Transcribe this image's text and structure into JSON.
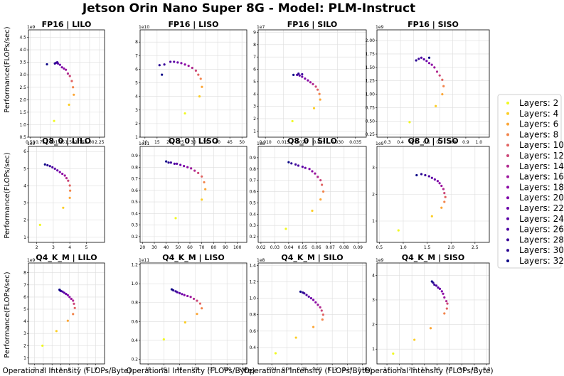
{
  "figure": {
    "title": "Jetson Orin Nano Super 8G - Model: PLM-Instruct",
    "ylabel": "Performance(FLOPs/sec)",
    "xlabel": "Operational Intensity (FLOPs/Byte)"
  },
  "legend": {
    "entries": [
      "Layers: 2",
      "Layers: 4",
      "Layers: 6",
      "Layers: 8",
      "Layers: 10",
      "Layers: 12",
      "Layers: 14",
      "Layers: 16",
      "Layers: 18",
      "Layers: 20",
      "Layers: 22",
      "Layers: 24",
      "Layers: 26",
      "Layers: 28",
      "Layers: 30",
      "Layers: 32"
    ],
    "colors": [
      "#f0f921",
      "#fcce25",
      "#fca636",
      "#f2844b",
      "#e16462",
      "#cc4778",
      "#b12a90",
      "#9c179e",
      "#8b0aa5",
      "#7e03a8",
      "#6a00a8",
      "#5b01a5",
      "#4c02a1",
      "#3a049a",
      "#2a0593",
      "#0d0887"
    ]
  },
  "chart_data": [
    {
      "type": "scatter",
      "title": "FP16 | LILO",
      "xlim": [
        0.45,
        2.38
      ],
      "ylim": [
        0.5,
        4.8
      ],
      "xticks": [
        "0.50",
        "0.75",
        "1.00",
        "1.25",
        "1.50",
        "1.75",
        "2.00",
        "2.25"
      ],
      "xtick_values": [
        0.5,
        0.75,
        1.0,
        1.25,
        1.5,
        1.75,
        2.0,
        2.25
      ],
      "yticks": [
        "0.5",
        "1.0",
        "1.5",
        "2.0",
        "2.5",
        "3.0",
        "3.5",
        "4.0",
        "4.5"
      ],
      "ytick_values": [
        0.5,
        1.0,
        1.5,
        2.0,
        2.5,
        3.0,
        3.5,
        4.0,
        4.5
      ],
      "exponent": "1e9",
      "x": [
        1.1,
        1.48,
        1.6,
        1.58,
        1.55,
        1.5,
        1.45,
        1.4,
        1.35,
        1.3,
        1.25,
        1.2,
        1.15,
        1.18,
        1.12,
        0.92
      ],
      "y": [
        1.15,
        1.8,
        2.2,
        2.5,
        2.75,
        2.95,
        3.05,
        3.2,
        3.25,
        3.3,
        3.4,
        3.45,
        3.48,
        3.5,
        3.45,
        3.42
      ]
    },
    {
      "type": "scatter",
      "title": "FP16 | LISO",
      "xlim": [
        8,
        52
      ],
      "ylim": [
        1.0,
        8.9
      ],
      "xticks": [
        "10",
        "15",
        "20",
        "25",
        "30",
        "35",
        "40",
        "45",
        "50"
      ],
      "xtick_values": [
        10,
        15,
        20,
        25,
        30,
        35,
        40,
        45,
        50
      ],
      "yticks": [
        "1",
        "2",
        "3",
        "4",
        "5",
        "6",
        "7",
        "8"
      ],
      "ytick_values": [
        1,
        2,
        3,
        4,
        5,
        6,
        7,
        8
      ],
      "exponent": "1e10",
      "x": [
        26.5,
        32.5,
        33.5,
        33,
        32,
        31,
        29.5,
        28,
        26.5,
        25,
        23.5,
        22,
        20.5,
        18,
        16,
        17
      ],
      "y": [
        2.75,
        4.0,
        4.7,
        5.3,
        5.6,
        5.9,
        6.1,
        6.25,
        6.35,
        6.45,
        6.5,
        6.55,
        6.55,
        6.35,
        6.3,
        5.6
      ]
    },
    {
      "type": "scatter",
      "title": "FP16 | SILO",
      "xlim": [
        0.008,
        0.038
      ],
      "ylim": [
        0.5,
        9.2
      ],
      "xticks": [
        "0.010",
        "0.015",
        "0.020",
        "0.025",
        "0.030",
        "0.035"
      ],
      "xtick_values": [
        0.01,
        0.015,
        0.02,
        0.025,
        0.03,
        0.035
      ],
      "yticks": [
        "1",
        "2",
        "3",
        "4",
        "5",
        "6",
        "7",
        "8",
        "9"
      ],
      "ytick_values": [
        1,
        2,
        3,
        4,
        5,
        6,
        7,
        8,
        9
      ],
      "exponent": "1e7",
      "x": [
        0.0175,
        0.0235,
        0.0252,
        0.025,
        0.0245,
        0.024,
        0.0232,
        0.0225,
        0.0218,
        0.021,
        0.0202,
        0.0195,
        0.0188,
        0.0202,
        0.0192,
        0.0178
      ],
      "y": [
        1.8,
        2.85,
        3.55,
        4.0,
        4.35,
        4.6,
        4.8,
        4.95,
        5.1,
        5.25,
        5.4,
        5.5,
        5.55,
        5.6,
        5.65,
        5.55
      ]
    },
    {
      "type": "scatter",
      "title": "FP16 | SISO",
      "xlim": [
        0.22,
        1.08
      ],
      "ylim": [
        0.2,
        2.2
      ],
      "xticks": [
        "0.3",
        "0.4",
        "0.5",
        "0.6",
        "0.7",
        "0.8",
        "0.9",
        "1.0"
      ],
      "xtick_values": [
        0.3,
        0.4,
        0.5,
        0.6,
        0.7,
        0.8,
        0.9,
        1.0
      ],
      "yticks": [
        "0.25",
        "0.50",
        "0.75",
        "1.00",
        "1.25",
        "1.50",
        "1.75",
        "2.00"
      ],
      "ytick_values": [
        0.25,
        0.5,
        0.75,
        1.0,
        1.25,
        1.5,
        1.75,
        2.0
      ],
      "exponent": "1e9",
      "x": [
        0.47,
        0.67,
        0.72,
        0.73,
        0.72,
        0.7,
        0.68,
        0.66,
        0.64,
        0.62,
        0.6,
        0.58,
        0.56,
        0.54,
        0.52,
        0.62
      ],
      "y": [
        0.48,
        0.78,
        1.0,
        1.15,
        1.27,
        1.35,
        1.42,
        1.5,
        1.55,
        1.58,
        1.62,
        1.65,
        1.68,
        1.66,
        1.63,
        1.68
      ]
    },
    {
      "type": "scatter",
      "title": "Q8_0 | LILO",
      "xlim": [
        1.5,
        6.1
      ],
      "ylim": [
        0.7,
        6.3
      ],
      "xticks": [
        "2",
        "3",
        "4",
        "5"
      ],
      "xtick_values": [
        2,
        3,
        4,
        5
      ],
      "yticks": [
        "1",
        "2",
        "3",
        "4",
        "5",
        "6"
      ],
      "ytick_values": [
        1,
        2,
        3,
        4,
        5,
        6
      ],
      "exponent": "1e9",
      "x": [
        2.2,
        3.6,
        4.0,
        4.02,
        4.0,
        3.9,
        3.8,
        3.7,
        3.55,
        3.4,
        3.25,
        3.1,
        2.95,
        2.8,
        2.65,
        2.5
      ],
      "y": [
        1.72,
        2.72,
        3.3,
        3.72,
        4.02,
        4.3,
        4.45,
        4.6,
        4.7,
        4.8,
        4.9,
        5.0,
        5.08,
        5.15,
        5.2,
        5.25
      ]
    },
    {
      "type": "scatter",
      "title": "Q8_0 | LISO",
      "xlim": [
        18,
        108
      ],
      "ylim": [
        0.15,
        0.98
      ],
      "xticks": [
        "20",
        "30",
        "40",
        "50",
        "60",
        "70",
        "80",
        "90",
        "100"
      ],
      "xtick_values": [
        20,
        30,
        40,
        50,
        60,
        70,
        80,
        90,
        100
      ],
      "yticks": [
        "0.2",
        "0.3",
        "0.4",
        "0.5",
        "0.6",
        "0.7",
        "0.8",
        "0.9"
      ],
      "ytick_values": [
        0.2,
        0.3,
        0.4,
        0.5,
        0.6,
        0.7,
        0.8,
        0.9
      ],
      "exponent": "1e11",
      "x": [
        48,
        70,
        73,
        72,
        70,
        67,
        64,
        61,
        58,
        55,
        52,
        49,
        47,
        44,
        42,
        40
      ],
      "y": [
        0.36,
        0.52,
        0.61,
        0.67,
        0.72,
        0.75,
        0.77,
        0.79,
        0.8,
        0.81,
        0.82,
        0.83,
        0.83,
        0.84,
        0.84,
        0.85
      ]
    },
    {
      "type": "scatter",
      "title": "Q8_0 | SILO",
      "xlim": [
        0.018,
        0.096
      ],
      "ylim": [
        0.15,
        1.0
      ],
      "xticks": [
        "0.02",
        "0.03",
        "0.04",
        "0.05",
        "0.06",
        "0.07",
        "0.08",
        "0.09"
      ],
      "xtick_values": [
        0.02,
        0.03,
        0.04,
        0.05,
        0.06,
        0.07,
        0.08,
        0.09
      ],
      "yticks": [
        "0.2",
        "0.3",
        "0.4",
        "0.5",
        "0.6",
        "0.7",
        "0.8",
        "0.9"
      ],
      "ytick_values": [
        0.2,
        0.3,
        0.4,
        0.5,
        0.6,
        0.7,
        0.8,
        0.9
      ],
      "exponent": "1e8",
      "x": [
        0.038,
        0.057,
        0.063,
        0.065,
        0.064,
        0.063,
        0.061,
        0.059,
        0.057,
        0.055,
        0.052,
        0.05,
        0.047,
        0.045,
        0.042,
        0.04
      ],
      "y": [
        0.27,
        0.43,
        0.53,
        0.6,
        0.66,
        0.7,
        0.73,
        0.76,
        0.78,
        0.8,
        0.81,
        0.82,
        0.83,
        0.84,
        0.85,
        0.86
      ]
    },
    {
      "type": "scatter",
      "title": "Q8_0 | SISO",
      "xlim": [
        0.45,
        2.8
      ],
      "ylim": [
        0.2,
        3.8
      ],
      "xticks": [
        "0.5",
        "1.0",
        "1.5",
        "2.0",
        "2.5"
      ],
      "xtick_values": [
        0.5,
        1.0,
        1.5,
        2.0,
        2.5
      ],
      "yticks": [
        "1",
        "2",
        "3"
      ],
      "ytick_values": [
        1,
        2,
        3
      ],
      "exponent": "1e9",
      "x": [
        0.9,
        1.6,
        1.8,
        1.86,
        1.88,
        1.86,
        1.84,
        1.8,
        1.76,
        1.72,
        1.66,
        1.6,
        1.54,
        1.46,
        1.38,
        1.28
      ],
      "y": [
        0.65,
        1.18,
        1.5,
        1.72,
        1.9,
        2.05,
        2.2,
        2.32,
        2.42,
        2.5,
        2.56,
        2.62,
        2.68,
        2.72,
        2.76,
        2.72
      ]
    },
    {
      "type": "scatter",
      "title": "Q4_K_M | LILO",
      "xlim": [
        1.3,
        10
      ],
      "ylim": [
        0.5,
        8.8
      ],
      "xticks": [
        "2",
        "3",
        "4",
        "5",
        "6",
        "7",
        "8",
        "9"
      ],
      "xtick_values": [
        2,
        3,
        4,
        5,
        6,
        7,
        8,
        9
      ],
      "yticks": [
        "1",
        "2",
        "3",
        "4",
        "5",
        "6",
        "7",
        "8"
      ],
      "ytick_values": [
        1,
        2,
        3,
        4,
        5,
        6,
        7,
        8
      ],
      "exponent": "1e9",
      "x": [
        2.9,
        4.5,
        5.8,
        6.4,
        6.6,
        6.5,
        6.4,
        6.2,
        6.0,
        5.8,
        5.6,
        5.4,
        5.2,
        5.0,
        4.9,
        4.85
      ],
      "y": [
        2.0,
        3.2,
        4.05,
        4.6,
        5.1,
        5.45,
        5.7,
        5.85,
        6.0,
        6.15,
        6.25,
        6.35,
        6.45,
        6.5,
        6.55,
        6.6
      ]
    },
    {
      "type": "scatter",
      "title": "Q4_K_M | LISO",
      "xlim": [
        30,
        165
      ],
      "ylim": [
        0.15,
        1.22
      ],
      "xticks": [
        "40",
        "60",
        "80",
        "100",
        "120",
        "140",
        "160"
      ],
      "xtick_values": [
        40,
        60,
        80,
        100,
        120,
        140,
        160
      ],
      "yticks": [
        "0.2",
        "0.4",
        "0.6",
        "0.8",
        "1.0",
        "1.2"
      ],
      "ytick_values": [
        0.2,
        0.4,
        0.6,
        0.8,
        1.0,
        1.2
      ],
      "exponent": "1e11",
      "x": [
        60,
        87,
        102,
        108,
        106,
        102,
        98,
        94,
        90,
        86,
        83,
        80,
        77,
        75,
        72,
        70
      ],
      "y": [
        0.41,
        0.59,
        0.68,
        0.74,
        0.79,
        0.82,
        0.84,
        0.86,
        0.87,
        0.88,
        0.89,
        0.9,
        0.91,
        0.92,
        0.93,
        0.94
      ]
    },
    {
      "type": "scatter",
      "title": "Q4_K_M | SILO",
      "xlim": [
        0.022,
        0.165
      ],
      "ylim": [
        0.2,
        1.43
      ],
      "xticks": [
        "0.04",
        "0.06",
        "0.08",
        "0.10",
        "0.12",
        "0.14",
        "0.16"
      ],
      "xtick_values": [
        0.04,
        0.06,
        0.08,
        0.1,
        0.12,
        0.14,
        0.16
      ],
      "yticks": [
        "0.4",
        "0.6",
        "0.8",
        "1.0",
        "1.2",
        "1.4"
      ],
      "ytick_values": [
        0.4,
        0.6,
        0.8,
        1.0,
        1.2,
        1.4
      ],
      "exponent": "1e8",
      "x": [
        0.045,
        0.072,
        0.095,
        0.107,
        0.108,
        0.106,
        0.104,
        0.101,
        0.098,
        0.095,
        0.092,
        0.089,
        0.086,
        0.083,
        0.081,
        0.078
      ],
      "y": [
        0.33,
        0.52,
        0.65,
        0.74,
        0.8,
        0.85,
        0.89,
        0.92,
        0.95,
        0.98,
        1.0,
        1.02,
        1.04,
        1.06,
        1.07,
        1.08
      ]
    },
    {
      "type": "scatter",
      "title": "Q4_K_M | SISO",
      "xlim": [
        0.6,
        5.1
      ],
      "ylim": [
        0.4,
        4.5
      ],
      "xticks": [
        "1.0",
        "1.5",
        "2.0",
        "2.5",
        "3.0",
        "3.5",
        "4.0",
        "4.5",
        "5.0"
      ],
      "xtick_values": [
        1.0,
        1.5,
        2.0,
        2.5,
        3.0,
        3.5,
        4.0,
        4.5,
        5.0
      ],
      "yticks": [
        "1",
        "2",
        "3",
        "4"
      ],
      "ytick_values": [
        1,
        2,
        3,
        4
      ],
      "exponent": "1e9",
      "x": [
        1.25,
        2.1,
        2.75,
        3.3,
        3.4,
        3.42,
        3.38,
        3.3,
        3.25,
        3.2,
        3.12,
        3.05,
        2.98,
        2.9,
        2.85,
        2.8
      ],
      "y": [
        0.82,
        1.38,
        1.85,
        2.45,
        2.65,
        2.85,
        2.95,
        3.1,
        3.25,
        3.35,
        3.45,
        3.5,
        3.58,
        3.62,
        3.7,
        3.75
      ]
    }
  ]
}
